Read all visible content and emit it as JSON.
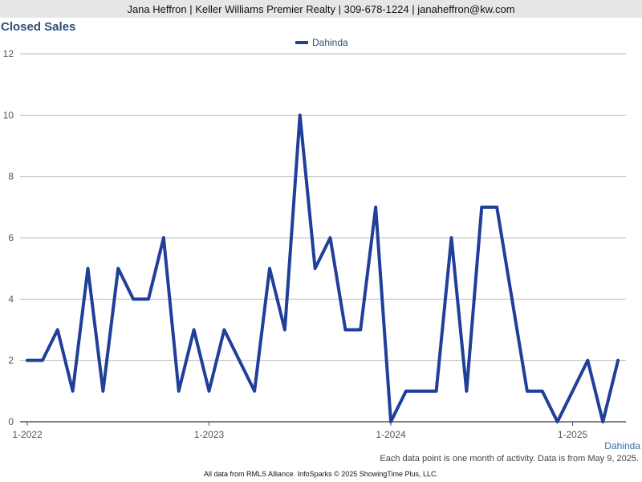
{
  "header": {
    "contact": "Jana Heffron | Keller Williams Premier Realty | 309-678-1224 | janaheffron@kw.com"
  },
  "region_label": "Dahinda",
  "note": "Each data point is one month of activity. Data is from May 9, 2025.",
  "footer": "All data from RMLS Alliance. InfoSparks © 2025 ShowingTime Plus, LLC.",
  "colors": {
    "series": "#1f3f99",
    "title": "#2c4f7c",
    "grid": "#bbbbbb"
  },
  "chart_data": {
    "type": "line",
    "title": "Closed Sales",
    "x_tick_labels": [
      "1-2022",
      "1-2023",
      "1-2024",
      "1-2025"
    ],
    "y_tick_labels": [
      "0",
      "2",
      "4",
      "6",
      "8",
      "10",
      "12"
    ],
    "ylim": [
      0,
      12
    ],
    "grid": true,
    "legend": "top-center",
    "x": [
      "2022-01",
      "2022-02",
      "2022-03",
      "2022-04",
      "2022-05",
      "2022-06",
      "2022-07",
      "2022-08",
      "2022-09",
      "2022-10",
      "2022-11",
      "2022-12",
      "2023-01",
      "2023-02",
      "2023-03",
      "2023-04",
      "2023-05",
      "2023-06",
      "2023-07",
      "2023-08",
      "2023-09",
      "2023-10",
      "2023-11",
      "2023-12",
      "2024-01",
      "2024-02",
      "2024-03",
      "2024-04",
      "2024-05",
      "2024-06",
      "2024-07",
      "2024-08",
      "2024-09",
      "2024-10",
      "2024-11",
      "2024-12",
      "2025-01",
      "2025-02",
      "2025-03",
      "2025-04"
    ],
    "series": [
      {
        "name": "Dahinda",
        "values": [
          2,
          2,
          3,
          1,
          5,
          1,
          5,
          4,
          4,
          6,
          1,
          3,
          1,
          3,
          2,
          1,
          5,
          3,
          10,
          5,
          6,
          3,
          3,
          7,
          0,
          1,
          1,
          1,
          6,
          1,
          7,
          7,
          4,
          1,
          1,
          0,
          1,
          2,
          0,
          2
        ]
      }
    ]
  }
}
